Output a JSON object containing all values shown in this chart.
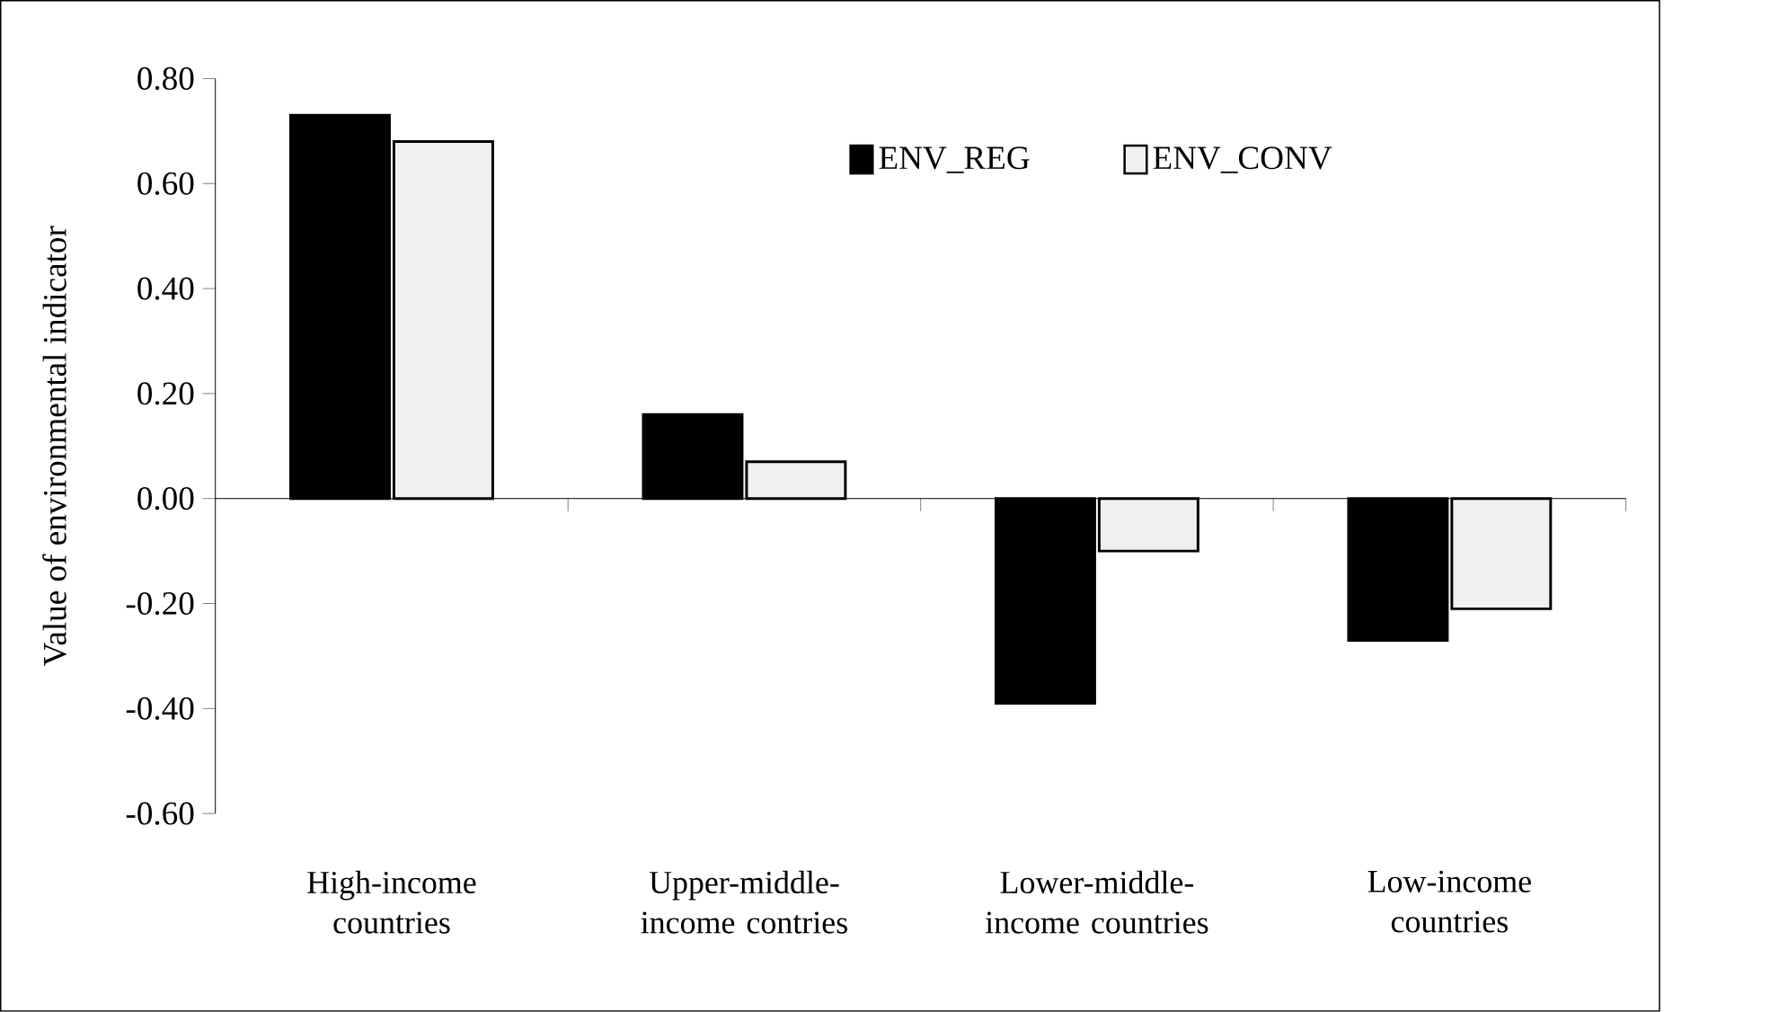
{
  "chart_data": {
    "type": "bar",
    "ylabel": "Value of environmental indicator",
    "categories": [
      "High-income countries",
      "Upper-middle-income contries",
      "Lower-middle-income countries",
      "Low-income countries"
    ],
    "series": [
      {
        "name": "ENV_REG",
        "color": "#000000",
        "values": [
          0.73,
          0.16,
          -0.39,
          -0.27
        ]
      },
      {
        "name": "ENV_CONV",
        "color": "#f0f0f0",
        "values": [
          0.68,
          0.07,
          -0.1,
          -0.21
        ]
      }
    ],
    "ylim": [
      -0.6,
      0.8
    ],
    "yticks": [
      {
        "value": -0.6,
        "label": "-0.60"
      },
      {
        "value": -0.4,
        "label": "-0.40"
      },
      {
        "value": -0.2,
        "label": "-0.20"
      },
      {
        "value": 0,
        "label": "0.00"
      },
      {
        "value": 0.2,
        "label": "0.20"
      },
      {
        "value": 0.4,
        "label": "0.40"
      },
      {
        "value": 0.6,
        "label": "0.60"
      },
      {
        "value": 0.8,
        "label": "0.80"
      }
    ],
    "legend": "top right"
  }
}
